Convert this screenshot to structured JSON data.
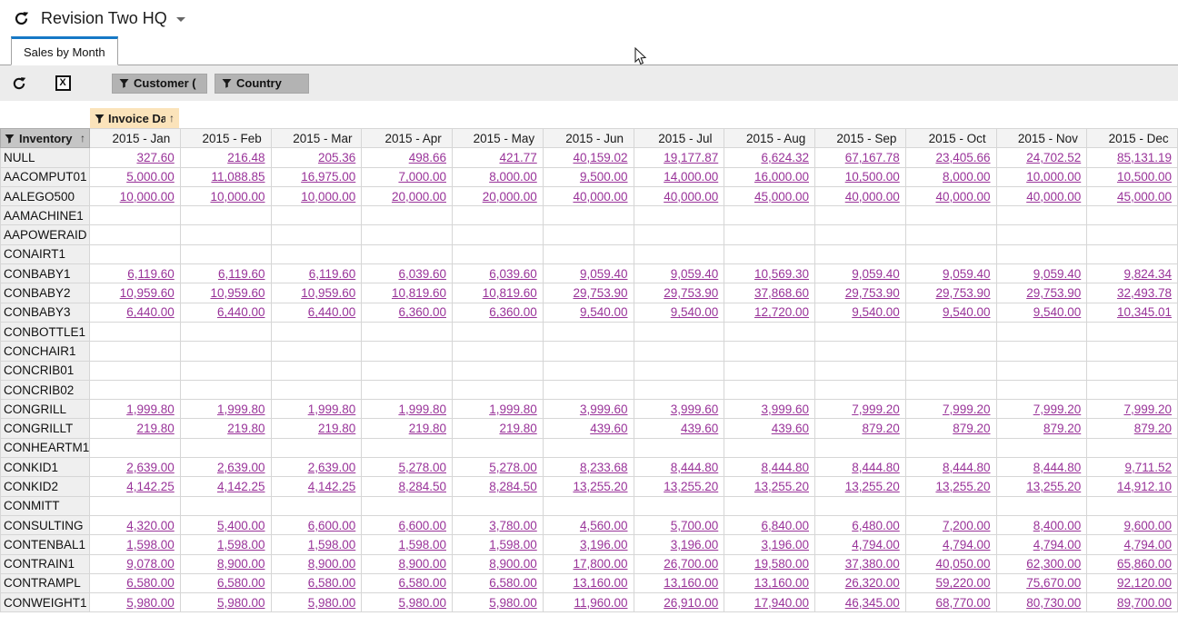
{
  "app": {
    "title": "Revision Two HQ"
  },
  "tabs": [
    {
      "label": "Sales by Month",
      "active": true
    }
  ],
  "toolbar": {
    "filters": [
      {
        "label": "Customer ("
      },
      {
        "label": "Country"
      }
    ]
  },
  "pivot": {
    "column_filter": {
      "label": "Invoice Da",
      "sort_indicator": "↑"
    },
    "row_header": {
      "label": "Inventory",
      "sort_indicator": "↑"
    },
    "columns": [
      "2015 - Jan",
      "2015 - Feb",
      "2015 - Mar",
      "2015 - Apr",
      "2015 - May",
      "2015 - Jun",
      "2015 - Jul",
      "2015 - Aug",
      "2015 - Sep",
      "2015 - Oct",
      "2015 - Nov",
      "2015 - Dec"
    ],
    "rows": [
      {
        "name": "NULL",
        "values": [
          "327.60",
          "216.48",
          "205.36",
          "498.66",
          "421.77",
          "40,159.02",
          "19,177.87",
          "6,624.32",
          "67,167.78",
          "23,405.66",
          "24,702.52",
          "85,131.19"
        ]
      },
      {
        "name": "AACOMPUT01",
        "values": [
          "5,000.00",
          "11,088.85",
          "16,975.00",
          "7,000.00",
          "8,000.00",
          "9,500.00",
          "14,000.00",
          "16,000.00",
          "10,500.00",
          "8,000.00",
          "10,000.00",
          "10,500.00"
        ]
      },
      {
        "name": "AALEGO500",
        "values": [
          "10,000.00",
          "10,000.00",
          "10,000.00",
          "20,000.00",
          "20,000.00",
          "40,000.00",
          "40,000.00",
          "45,000.00",
          "40,000.00",
          "40,000.00",
          "40,000.00",
          "45,000.00"
        ]
      },
      {
        "name": "AAMACHINE1",
        "values": []
      },
      {
        "name": "AAPOWERAID",
        "values": []
      },
      {
        "name": "CONAIRT1",
        "values": []
      },
      {
        "name": "CONBABY1",
        "values": [
          "6,119.60",
          "6,119.60",
          "6,119.60",
          "6,039.60",
          "6,039.60",
          "9,059.40",
          "9,059.40",
          "10,569.30",
          "9,059.40",
          "9,059.40",
          "9,059.40",
          "9,824.34"
        ]
      },
      {
        "name": "CONBABY2",
        "values": [
          "10,959.60",
          "10,959.60",
          "10,959.60",
          "10,819.60",
          "10,819.60",
          "29,753.90",
          "29,753.90",
          "37,868.60",
          "29,753.90",
          "29,753.90",
          "29,753.90",
          "32,493.78"
        ]
      },
      {
        "name": "CONBABY3",
        "values": [
          "6,440.00",
          "6,440.00",
          "6,440.00",
          "6,360.00",
          "6,360.00",
          "9,540.00",
          "9,540.00",
          "12,720.00",
          "9,540.00",
          "9,540.00",
          "9,540.00",
          "10,345.01"
        ]
      },
      {
        "name": "CONBOTTLE1",
        "values": []
      },
      {
        "name": "CONCHAIR1",
        "values": []
      },
      {
        "name": "CONCRIB01",
        "values": []
      },
      {
        "name": "CONCRIB02",
        "values": []
      },
      {
        "name": "CONGRILL",
        "values": [
          "1,999.80",
          "1,999.80",
          "1,999.80",
          "1,999.80",
          "1,999.80",
          "3,999.60",
          "3,999.60",
          "3,999.60",
          "7,999.20",
          "7,999.20",
          "7,999.20",
          "7,999.20"
        ]
      },
      {
        "name": "CONGRILLT",
        "values": [
          "219.80",
          "219.80",
          "219.80",
          "219.80",
          "219.80",
          "439.60",
          "439.60",
          "439.60",
          "879.20",
          "879.20",
          "879.20",
          "879.20"
        ]
      },
      {
        "name": "CONHEARTM1",
        "values": []
      },
      {
        "name": "CONKID1",
        "values": [
          "2,639.00",
          "2,639.00",
          "2,639.00",
          "5,278.00",
          "5,278.00",
          "8,233.68",
          "8,444.80",
          "8,444.80",
          "8,444.80",
          "8,444.80",
          "8,444.80",
          "9,711.52"
        ]
      },
      {
        "name": "CONKID2",
        "values": [
          "4,142.25",
          "4,142.25",
          "4,142.25",
          "8,284.50",
          "8,284.50",
          "13,255.20",
          "13,255.20",
          "13,255.20",
          "13,255.20",
          "13,255.20",
          "13,255.20",
          "14,912.10"
        ]
      },
      {
        "name": "CONMITT",
        "values": []
      },
      {
        "name": "CONSULTING",
        "values": [
          "4,320.00",
          "5,400.00",
          "6,600.00",
          "6,600.00",
          "3,780.00",
          "4,560.00",
          "5,700.00",
          "6,840.00",
          "6,480.00",
          "7,200.00",
          "8,400.00",
          "9,600.00"
        ]
      },
      {
        "name": "CONTENBAL1",
        "values": [
          "1,598.00",
          "1,598.00",
          "1,598.00",
          "1,598.00",
          "1,598.00",
          "3,196.00",
          "3,196.00",
          "3,196.00",
          "4,794.00",
          "4,794.00",
          "4,794.00",
          "4,794.00"
        ]
      },
      {
        "name": "CONTRAIN1",
        "values": [
          "9,078.00",
          "8,900.00",
          "8,900.00",
          "8,900.00",
          "8,900.00",
          "17,800.00",
          "26,700.00",
          "19,580.00",
          "37,380.00",
          "40,050.00",
          "62,300.00",
          "65,860.00"
        ]
      },
      {
        "name": "CONTRAMPL",
        "values": [
          "6,580.00",
          "6,580.00",
          "6,580.00",
          "6,580.00",
          "6,580.00",
          "13,160.00",
          "13,160.00",
          "13,160.00",
          "26,320.00",
          "59,220.00",
          "75,670.00",
          "92,120.00"
        ]
      },
      {
        "name": "CONWEIGHT1",
        "values": [
          "5,980.00",
          "5,980.00",
          "5,980.00",
          "5,980.00",
          "5,980.00",
          "11,960.00",
          "26,910.00",
          "17,940.00",
          "46,345.00",
          "68,770.00",
          "80,730.00",
          "89,700.00"
        ]
      }
    ]
  },
  "icons": {
    "refresh": "refresh-icon",
    "excel_export": "excel-export-icon",
    "filter": "filter-funnel-icon",
    "dropdown": "chevron-down-icon"
  },
  "colors": {
    "tab_accent_blue": "#1679c6",
    "value_link_purple": "#993399",
    "filter_chip_gray": "#b3b3b3",
    "sorted_filter_peach": "#fbe3ba",
    "toolbar_gray": "#ececec"
  }
}
